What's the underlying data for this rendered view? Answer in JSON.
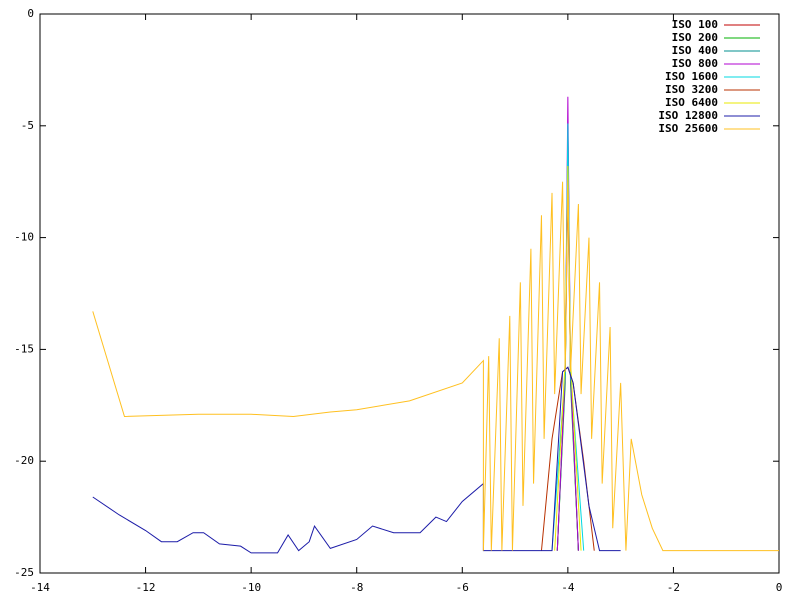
{
  "chart_data": {
    "type": "line",
    "xlim": [
      -14,
      0
    ],
    "xticks": [
      -14,
      -12,
      -10,
      -8,
      -6,
      -4,
      -2,
      0
    ],
    "ylim": [
      -25,
      0
    ],
    "yticks": [
      -25,
      -20,
      -15,
      -10,
      -5,
      0
    ],
    "grid": false,
    "legend": "top-right",
    "series": [
      {
        "name": "ISO 100",
        "color": "#c00000",
        "x": [
          -4.2,
          -4.05,
          -4.0,
          -3.95,
          -3.8
        ],
        "values": [
          -24,
          -16,
          -7.8,
          -16,
          -24
        ]
      },
      {
        "name": "ISO 200",
        "color": "#00b000",
        "x": [
          -4.2,
          -4.05,
          -4.0,
          -3.95,
          -3.8
        ],
        "values": [
          -24,
          -16.5,
          -5.3,
          -16.5,
          -24
        ]
      },
      {
        "name": "ISO 400",
        "color": "#008f8f",
        "x": [
          -4.2,
          -4.05,
          -4.0,
          -3.95,
          -3.8
        ],
        "values": [
          -24,
          -16.2,
          -5.0,
          -16.2,
          -24
        ]
      },
      {
        "name": "ISO 800",
        "color": "#b000d0",
        "x": [
          -4.2,
          -4.05,
          -4.0,
          -3.95,
          -3.8
        ],
        "values": [
          -24,
          -16,
          -3.7,
          -16,
          -24
        ]
      },
      {
        "name": "ISO 1600",
        "color": "#00d8e0",
        "x": [
          -4.3,
          -4.05,
          -4.0,
          -3.95,
          -3.7
        ],
        "values": [
          -24,
          -16,
          -4.9,
          -16,
          -24
        ]
      },
      {
        "name": "ISO 3200",
        "color": "#b83000",
        "x": [
          -4.5,
          -4.3,
          -4.1,
          -4.0,
          -3.9,
          -3.7,
          -3.5
        ],
        "values": [
          -24,
          -19,
          -16,
          -15.8,
          -16.5,
          -20,
          -24
        ]
      },
      {
        "name": "ISO 6400",
        "color": "#e8e800",
        "x": [
          -4.25,
          -4.05,
          -4.0,
          -3.95,
          -3.75
        ],
        "values": [
          -24,
          -15.5,
          -6.8,
          -15.5,
          -24
        ]
      },
      {
        "name": "ISO 12800",
        "color": "#1c1ca8",
        "x": [
          -13,
          -12.5,
          -12,
          -11.7,
          -11.4,
          -11.1,
          -10.9,
          -10.6,
          -10.2,
          -10,
          -9.5,
          -9.3,
          -9.1,
          -8.9,
          -8.8,
          -8.5,
          -8,
          -7.7,
          -7.3,
          -6.8,
          -6.5,
          -6.3,
          -6,
          -5.6,
          -5.6,
          -4.3,
          -4.1,
          -4,
          -3.9,
          -3.6,
          -3.4,
          -3.0
        ],
        "values": [
          -21.6,
          -22.4,
          -23.1,
          -23.6,
          -23.6,
          -23.2,
          -23.2,
          -23.7,
          -23.8,
          -24.1,
          -24.1,
          -23.3,
          -24,
          -23.6,
          -22.9,
          -23.9,
          -23.5,
          -22.9,
          -23.2,
          -23.2,
          -22.5,
          -22.7,
          -21.8,
          -21,
          -24,
          -24,
          -16,
          -15.8,
          -16.5,
          -22,
          -24,
          -24
        ]
      },
      {
        "name": "ISO 25600",
        "color": "#ffc020",
        "x": [
          -13,
          -12.4,
          -11,
          -10,
          -9.2,
          -8.5,
          -8,
          -7,
          -6,
          -5.6,
          -5.6,
          -5.5,
          -5.45,
          -5.3,
          -5.25,
          -5.1,
          -5.05,
          -4.9,
          -4.85,
          -4.7,
          -4.65,
          -4.5,
          -4.45,
          -4.3,
          -4.25,
          -4.1,
          -4.05,
          -4.0,
          -3.95,
          -3.8,
          -3.75,
          -3.6,
          -3.55,
          -3.4,
          -3.35,
          -3.2,
          -3.15,
          -3.0,
          -2.9,
          -2.8,
          -2.6,
          -2.4,
          -2.2,
          0
        ],
        "values": [
          -13.3,
          -18,
          -17.9,
          -17.9,
          -18,
          -17.8,
          -17.7,
          -17.3,
          -16.5,
          -15.5,
          -24,
          -15.3,
          -24,
          -14.5,
          -24,
          -13.5,
          -24,
          -12,
          -22,
          -10.5,
          -21,
          -9,
          -19,
          -8,
          -17,
          -7.5,
          -16,
          -7.4,
          -16,
          -8.5,
          -17,
          -10,
          -19,
          -12,
          -21,
          -14,
          -23,
          -16.5,
          -24,
          -19,
          -21.5,
          -23,
          -24,
          -24
        ]
      }
    ]
  }
}
